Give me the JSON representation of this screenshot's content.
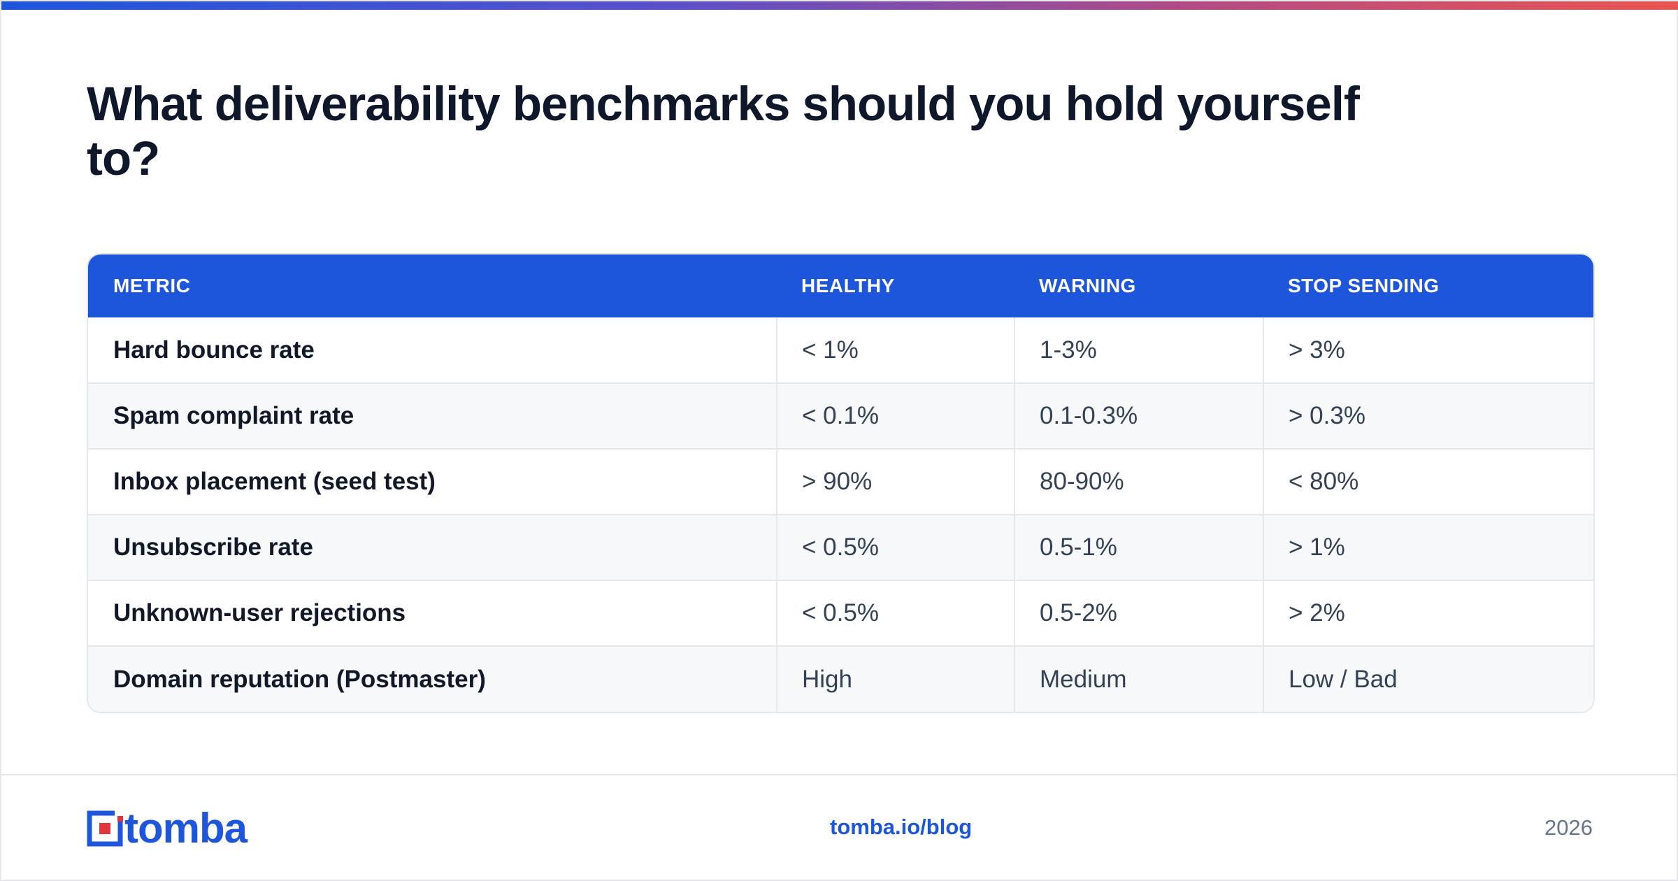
{
  "title": "What deliverability benchmarks should you hold yourself to?",
  "table": {
    "headers": [
      "METRIC",
      "HEALTHY",
      "WARNING",
      "STOP SENDING"
    ],
    "rows": [
      [
        "Hard bounce rate",
        "< 1%",
        "1-3%",
        "> 3%"
      ],
      [
        "Spam complaint rate",
        "< 0.1%",
        "0.1-0.3%",
        "> 0.3%"
      ],
      [
        "Inbox placement (seed test)",
        "> 90%",
        "80-90%",
        "< 80%"
      ],
      [
        "Unsubscribe rate",
        "< 0.5%",
        "0.5-1%",
        "> 1%"
      ],
      [
        "Unknown-user rejections",
        "< 0.5%",
        "0.5-2%",
        "> 2%"
      ],
      [
        "Domain reputation (Postmaster)",
        "High",
        "Medium",
        "Low / Bad"
      ]
    ]
  },
  "footer": {
    "logo_text": "tomba",
    "link": "tomba.io/blog",
    "year": "2026"
  },
  "colors": {
    "brand_blue": "#1d56db",
    "brand_red": "#e0383a",
    "title_text": "#0f172a"
  },
  "icons": {
    "logo": "tomba-logo-icon"
  }
}
